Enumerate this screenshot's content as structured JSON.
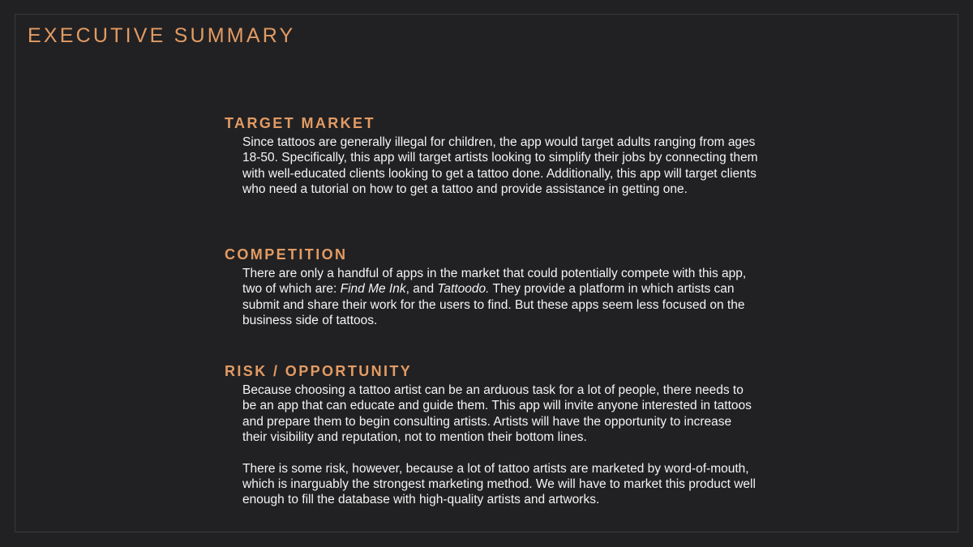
{
  "page": {
    "title": "EXECUTIVE SUMMARY"
  },
  "sections": [
    {
      "heading": "TARGET MARKET",
      "paragraphs": [
        "Since tattoos are generally illegal for children, the app would target adults ranging from ages 18-50. Specifically, this app will target artists looking to simplify their jobs by connecting them with well-educated clients looking to get a tattoo done. Additionally, this app will target clients who need a tutorial on how to get a tattoo and provide assistance in getting one."
      ]
    },
    {
      "heading": "COMPETITION",
      "paragraph_parts": {
        "before": "There are only a handful of apps in the market that could potentially compete with this app, two of which are: ",
        "app1": "Find Me Ink",
        "between": ", and ",
        "app2": "Tattoodo.",
        "after": " They provide a platform in which artists can submit and share their work for the users to find. But these apps seem less focused on the business side of tattoos."
      }
    },
    {
      "heading": "RISK / OPPORTUNITY",
      "paragraphs": [
        "Because choosing a tattoo artist can be an arduous task for a lot of people, there needs to be an app that can educate and guide them. This app will invite anyone interested in tattoos and prepare them to begin consulting artists. Artists will have the opportunity to increase their visibility and reputation, not to mention their bottom lines.",
        "There is some risk, however, because a lot of tattoo artists are marketed by word-of-mouth, which is inarguably the strongest marketing method. We will have to market this product well enough to fill the database with high-quality artists and artworks."
      ]
    }
  ],
  "colors": {
    "accent": "#e39b63",
    "background": "#212123",
    "text": "#f4f4f4",
    "frame_border": "#3a3a3c"
  }
}
